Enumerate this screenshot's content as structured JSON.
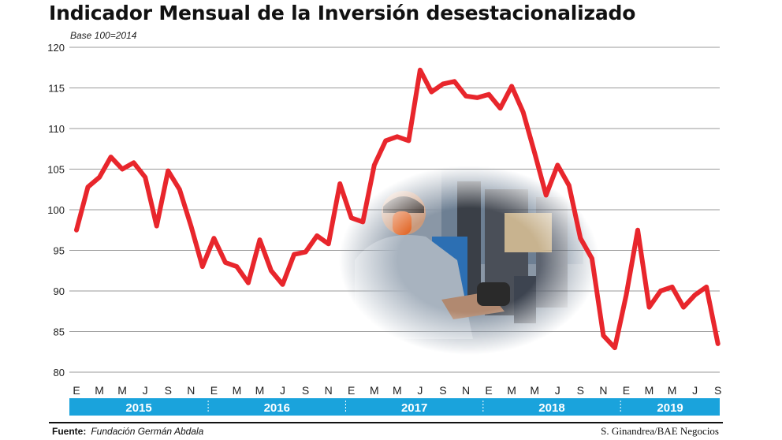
{
  "header": {
    "title": "Indicador Mensual de la Inversión desestacionalizado",
    "subtitle": "Base 100=2014"
  },
  "footer": {
    "source_label": "Fuente:",
    "source_value": "Fundación Germán Abdala",
    "credit": "S. Ginandrea/BAE Negocios"
  },
  "colors": {
    "line": "#e8262c",
    "year_band": "#1aa3dc",
    "grid": "#9a9a9a"
  },
  "photo": {
    "icon": "factory-worker-photo"
  },
  "chart_data": {
    "type": "line",
    "title": "Indicador Mensual de la Inversión desestacionalizado",
    "subtitle": "Base 100=2014",
    "xlabel": "",
    "ylabel": "",
    "ylim": [
      80,
      120
    ],
    "yticks": [
      80,
      85,
      90,
      95,
      100,
      105,
      110,
      115,
      120
    ],
    "grid": true,
    "legend": "none",
    "month_labels": [
      "E",
      "M",
      "M",
      "J",
      "S",
      "N"
    ],
    "years": [
      "2015",
      "2016",
      "2017",
      "2018",
      "2019"
    ],
    "x": [
      "2015-01",
      "2015-02",
      "2015-03",
      "2015-04",
      "2015-05",
      "2015-06",
      "2015-07",
      "2015-08",
      "2015-09",
      "2015-10",
      "2015-11",
      "2015-12",
      "2016-01",
      "2016-02",
      "2016-03",
      "2016-04",
      "2016-05",
      "2016-06",
      "2016-07",
      "2016-08",
      "2016-09",
      "2016-10",
      "2016-11",
      "2016-12",
      "2017-01",
      "2017-02",
      "2017-03",
      "2017-04",
      "2017-05",
      "2017-06",
      "2017-07",
      "2017-08",
      "2017-09",
      "2017-10",
      "2017-11",
      "2017-12",
      "2018-01",
      "2018-02",
      "2018-03",
      "2018-04",
      "2018-05",
      "2018-06",
      "2018-07",
      "2018-08",
      "2018-09",
      "2018-10",
      "2018-11",
      "2018-12",
      "2019-01",
      "2019-02",
      "2019-03",
      "2019-04",
      "2019-05",
      "2019-06",
      "2019-07",
      "2019-08",
      "2019-09"
    ],
    "series": [
      {
        "values": [
          97.5,
          102.8,
          104.0,
          106.5,
          105.0,
          105.8,
          104.0,
          98.0,
          104.8,
          102.5,
          98.0,
          93.0,
          96.5,
          93.5,
          93.0,
          91.0,
          96.3,
          92.5,
          90.8,
          94.5,
          94.8,
          96.8,
          95.8,
          103.2,
          99.0,
          98.5,
          105.5,
          108.5,
          109.0,
          108.5,
          117.2,
          114.5,
          115.5,
          115.8,
          114.0,
          113.8,
          114.2,
          112.5,
          115.2,
          112.0,
          107.0,
          101.8,
          105.5,
          103.0,
          96.5,
          94.0,
          84.5,
          83.0,
          89.5,
          97.5,
          88.0,
          90.0,
          90.5,
          88.0,
          89.5,
          90.5,
          83.5
        ]
      }
    ]
  }
}
